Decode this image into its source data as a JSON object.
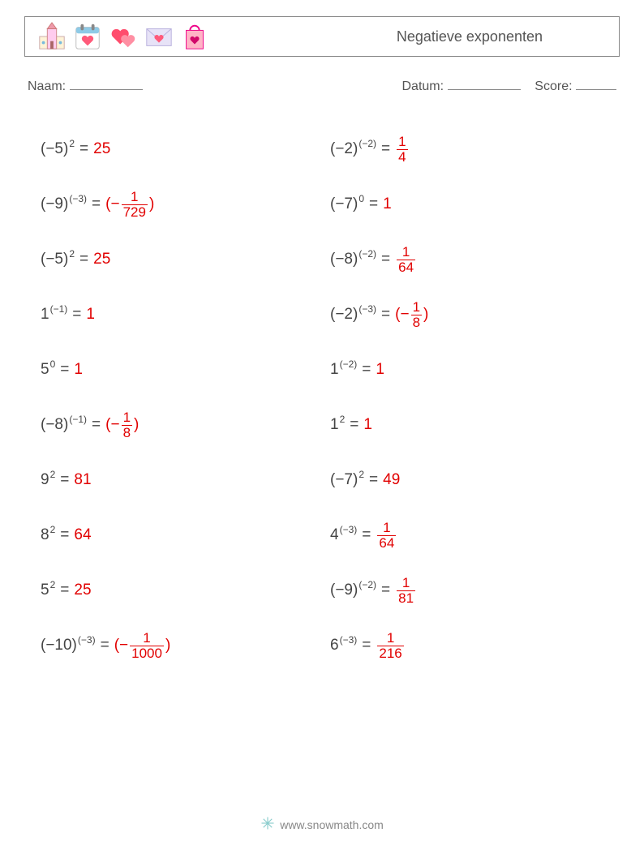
{
  "title": "Negatieve exponenten",
  "info_labels": {
    "name": "Naam:",
    "date": "Datum:",
    "score": "Score:"
  },
  "footer": "www.snowmath.com",
  "colors": {
    "text": "#444444",
    "answer": "#e10000",
    "border": "#888888"
  },
  "icon_names": [
    "church-icon",
    "calendar-heart-icon",
    "hearts-icon",
    "envelope-heart-icon",
    "bag-heart-icon"
  ],
  "problems_left": [
    {
      "base": "(−5)",
      "exp": "2",
      "ans": {
        "type": "int",
        "value": "25"
      }
    },
    {
      "base": "(−9)",
      "exp": "(−3)",
      "ans": {
        "type": "frac",
        "prefix": "(−",
        "num": "1",
        "den": "729",
        "suffix": ")"
      }
    },
    {
      "base": "(−5)",
      "exp": "2",
      "ans": {
        "type": "int",
        "value": "25"
      }
    },
    {
      "base": "1",
      "exp": "(−1)",
      "ans": {
        "type": "int",
        "value": "1"
      }
    },
    {
      "base": "5",
      "exp": "0",
      "ans": {
        "type": "int",
        "value": "1"
      }
    },
    {
      "base": "(−8)",
      "exp": "(−1)",
      "ans": {
        "type": "frac",
        "prefix": "(−",
        "num": "1",
        "den": "8",
        "suffix": ")"
      }
    },
    {
      "base": "9",
      "exp": "2",
      "ans": {
        "type": "int",
        "value": "81"
      }
    },
    {
      "base": "8",
      "exp": "2",
      "ans": {
        "type": "int",
        "value": "64"
      }
    },
    {
      "base": "5",
      "exp": "2",
      "ans": {
        "type": "int",
        "value": "25"
      }
    },
    {
      "base": "(−10)",
      "exp": "(−3)",
      "ans": {
        "type": "frac",
        "prefix": "(−",
        "num": "1",
        "den": "1000",
        "suffix": ")"
      }
    }
  ],
  "problems_right": [
    {
      "base": "(−2)",
      "exp": "(−2)",
      "ans": {
        "type": "frac",
        "prefix": "",
        "num": "1",
        "den": "4",
        "suffix": ""
      }
    },
    {
      "base": "(−7)",
      "exp": "0",
      "ans": {
        "type": "int",
        "value": "1"
      }
    },
    {
      "base": "(−8)",
      "exp": "(−2)",
      "ans": {
        "type": "frac",
        "prefix": "",
        "num": "1",
        "den": "64",
        "suffix": ""
      }
    },
    {
      "base": "(−2)",
      "exp": "(−3)",
      "ans": {
        "type": "frac",
        "prefix": "(−",
        "num": "1",
        "den": "8",
        "suffix": ")"
      }
    },
    {
      "base": "1",
      "exp": "(−2)",
      "ans": {
        "type": "int",
        "value": "1"
      }
    },
    {
      "base": "1",
      "exp": "2",
      "ans": {
        "type": "int",
        "value": "1"
      }
    },
    {
      "base": "(−7)",
      "exp": "2",
      "ans": {
        "type": "int",
        "value": "49"
      }
    },
    {
      "base": "4",
      "exp": "(−3)",
      "ans": {
        "type": "frac",
        "prefix": "",
        "num": "1",
        "den": "64",
        "suffix": ""
      }
    },
    {
      "base": "(−9)",
      "exp": "(−2)",
      "ans": {
        "type": "frac",
        "prefix": "",
        "num": "1",
        "den": "81",
        "suffix": ""
      }
    },
    {
      "base": "6",
      "exp": "(−3)",
      "ans": {
        "type": "frac",
        "prefix": "",
        "num": "1",
        "den": "216",
        "suffix": ""
      }
    }
  ]
}
